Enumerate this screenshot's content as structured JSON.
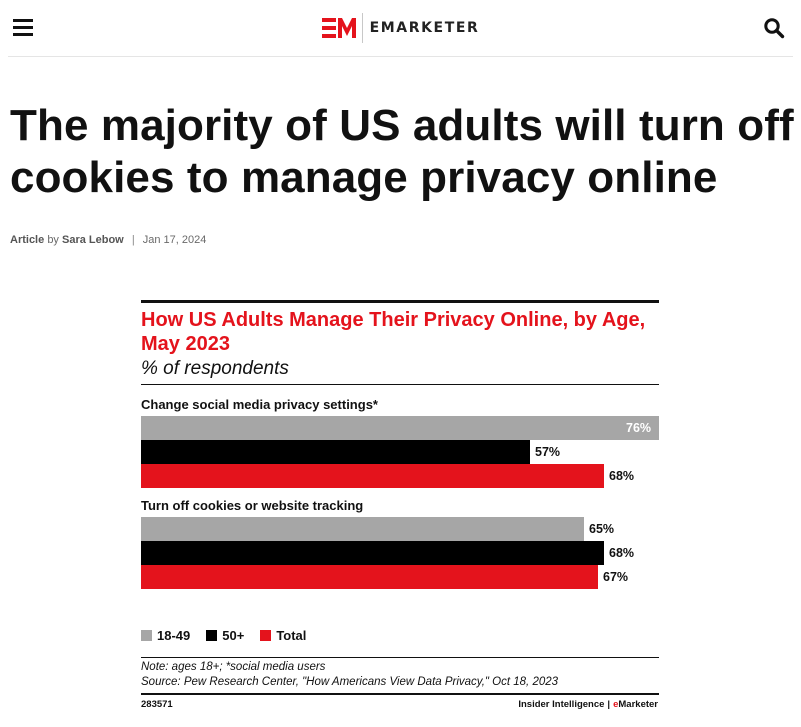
{
  "header": {
    "brand": "EMARKETER",
    "brand_accent": "#e4131c",
    "menu_icon": "hamburger-icon",
    "search_icon": "search-icon"
  },
  "article": {
    "title": "The majority of US adults will turn off cookies to manage privacy online",
    "type": "Article",
    "by": "by",
    "author": "Sara Lebow",
    "date": "Jan 17, 2024"
  },
  "chart_data": {
    "type": "bar",
    "orientation": "horizontal",
    "title": "How US Adults Manage Their Privacy Online, by Age, May 2023",
    "subtitle": "% of respondents",
    "xlim": [
      0,
      76
    ],
    "categories": [
      "Change social media privacy settings*",
      "Turn off cookies or website tracking"
    ],
    "series": [
      {
        "name": "18-49",
        "color": "#a6a6a6",
        "values": [
          76,
          65
        ],
        "labels": [
          "76%",
          "65%"
        ]
      },
      {
        "name": "50+",
        "color": "#000000",
        "values": [
          57,
          68
        ],
        "labels": [
          "57%",
          "68%"
        ]
      },
      {
        "name": "Total",
        "color": "#e4131c",
        "values": [
          68,
          67
        ],
        "labels": [
          "68%",
          "67%"
        ]
      }
    ],
    "note": "Note: ages 18+; *social media users",
    "source": "Source: Pew Research Center, \"How Americans View Data Privacy,\" Oct 18, 2023",
    "chart_id": "283571",
    "credit_left": "Insider Intelligence",
    "credit_sep": "|",
    "credit_right_e": "e",
    "credit_right_rest": "Marketer"
  }
}
